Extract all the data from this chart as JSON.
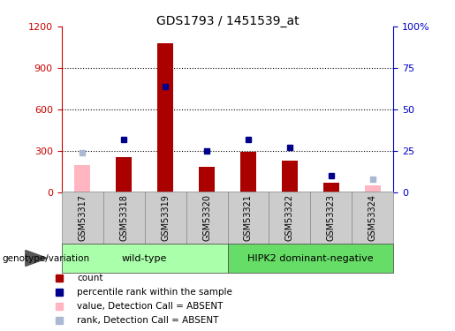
{
  "title": "GDS1793 / 1451539_at",
  "samples": [
    "GSM53317",
    "GSM53318",
    "GSM53319",
    "GSM53320",
    "GSM53321",
    "GSM53322",
    "GSM53323",
    "GSM53324"
  ],
  "counts": [
    null,
    255,
    1080,
    185,
    290,
    230,
    70,
    null
  ],
  "absent_counts": [
    195,
    null,
    null,
    null,
    null,
    null,
    null,
    45
  ],
  "percentile_ranks": [
    null,
    32,
    64,
    25,
    32,
    27,
    10,
    null
  ],
  "absent_ranks": [
    24,
    null,
    null,
    null,
    null,
    null,
    null,
    8
  ],
  "groups": [
    {
      "label": "wild-type",
      "start": 0,
      "end": 4
    },
    {
      "label": "HIPK2 dominant-negative",
      "start": 4,
      "end": 8
    }
  ],
  "group_color_left": "#aaffaa",
  "group_color_right": "#66dd66",
  "bar_color": "#aa0000",
  "absent_bar_color": "#ffb6c1",
  "rank_color": "#00008b",
  "absent_rank_color": "#aab8d4",
  "left_axis_color": "#cc0000",
  "right_axis_color": "#0000cc",
  "ylim_left": [
    0,
    1200
  ],
  "ylim_right": [
    0,
    100
  ],
  "yticks_left": [
    0,
    300,
    600,
    900,
    1200
  ],
  "yticks_right": [
    0,
    25,
    50,
    75,
    100
  ],
  "ytick_labels_right": [
    "0",
    "25",
    "50",
    "75",
    "100%"
  ],
  "grid_dotted_at": [
    300,
    600,
    900
  ],
  "legend_items": [
    {
      "label": "count",
      "color": "#aa0000"
    },
    {
      "label": "percentile rank within the sample",
      "color": "#00008b"
    },
    {
      "label": "value, Detection Call = ABSENT",
      "color": "#ffb6c1"
    },
    {
      "label": "rank, Detection Call = ABSENT",
      "color": "#aab8d4"
    }
  ],
  "genotype_label": "genotype/variation",
  "title_fontsize": 10,
  "tick_label_color_left": "#cc0000",
  "tick_label_color_right": "#0000cc",
  "bar_width": 0.4
}
